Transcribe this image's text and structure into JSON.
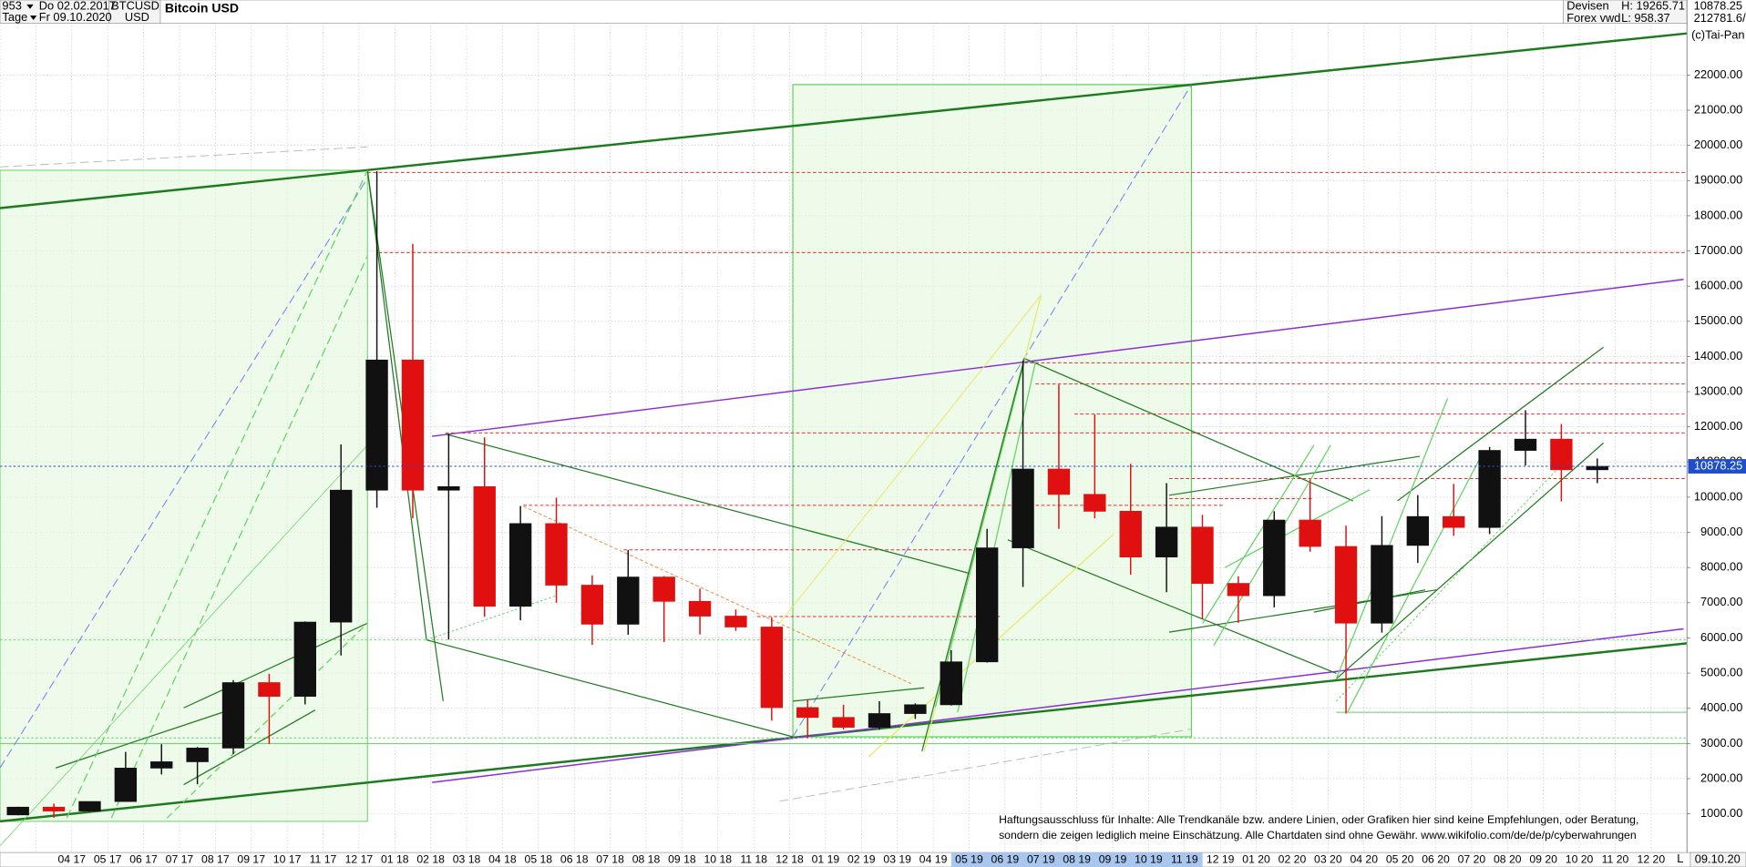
{
  "header": {
    "bars": "953",
    "period": "Tage",
    "from": "Do 02.02.2017",
    "to": "Fr 09.10.2020",
    "symbol": "BTCUSD",
    "currency": "USD",
    "exchange": "Devisen",
    "source": "Forex vwd",
    "high": "H: 19265.71",
    "low": "L: 958.37",
    "volume": "212781.6/",
    "copyright": "(c)Tai-Pan"
  },
  "chart_data": {
    "type": "candlestick",
    "title": "Bitcoin USD",
    "categories": [
      null,
      null,
      "04 17",
      "05 17",
      "06 17",
      "07 17",
      "08 17",
      "09 17",
      "10 17",
      "11 17",
      "12 17",
      "01 18",
      "02 18",
      "03 18",
      "04 18",
      "05 18",
      "06 18",
      "07 18",
      "08 18",
      "09 18",
      "10 18",
      "11 18",
      "12 18",
      "01 19",
      "02 19",
      "03 19",
      "04 19",
      "05 19",
      "06 19",
      "07 19",
      "08 19",
      "09 19",
      "10 19",
      "11 19",
      "12 19",
      "01 20",
      "02 20",
      "03 20",
      "04 20",
      "05 20",
      "06 20",
      "07 20",
      "08 20",
      "09 20",
      "10 20",
      "11 20",
      "12 20"
    ],
    "open": [
      970,
      1190,
      1080,
      1350,
      2300,
      2480,
      2870,
      4730,
      4340,
      6450,
      10200,
      13900,
      10200,
      10300,
      6900,
      9250,
      7500,
      6390,
      7730,
      7040,
      6620,
      6310,
      4020,
      3740,
      3460,
      3850,
      4100,
      5320,
      8560,
      10800,
      10080,
      9600,
      8300,
      9150,
      7550,
      7200,
      9350,
      8600,
      6420,
      8630,
      9450,
      9140,
      11330,
      11650,
      10780,
      null,
      null
    ],
    "high": [
      1200,
      1290,
      1350,
      2760,
      2980,
      2900,
      4800,
      4980,
      6470,
      11500,
      19265.71,
      17200,
      11800,
      11700,
      9750,
      9990,
      7780,
      8500,
      7760,
      7400,
      6810,
      6580,
      4250,
      4100,
      4200,
      4140,
      5650,
      9100,
      13880,
      13200,
      12350,
      10950,
      10400,
      9500,
      7750,
      9600,
      10500,
      9190,
      9460,
      10060,
      10380,
      11430,
      12470,
      12080,
      11100,
      null,
      null
    ],
    "low": [
      958.37,
      890,
      1060,
      1350,
      2120,
      1840,
      2700,
      2980,
      4110,
      5500,
      9700,
      9400,
      5950,
      6600,
      6500,
      7000,
      5800,
      6090,
      5880,
      6100,
      6200,
      3650,
      3150,
      3400,
      3390,
      3700,
      4080,
      5300,
      7450,
      9100,
      9400,
      7800,
      7300,
      6550,
      6430,
      6870,
      8450,
      3850,
      6150,
      8130,
      8900,
      8950,
      10900,
      9880,
      10400,
      null,
      null
    ],
    "close": [
      1190,
      1080,
      1350,
      2300,
      2480,
      2870,
      4730,
      4340,
      6450,
      10200,
      13900,
      10200,
      10300,
      6900,
      9250,
      7500,
      6390,
      7730,
      7040,
      6620,
      6310,
      4020,
      3740,
      3460,
      3850,
      4100,
      5320,
      8560,
      10800,
      10080,
      9600,
      8300,
      9150,
      7550,
      7200,
      9350,
      8600,
      6420,
      8630,
      9450,
      9140,
      11330,
      11650,
      10780,
      10878.25,
      null,
      null
    ],
    "up_color": "#111111",
    "down_color": "#e01010",
    "last_color": "#1f4fc8",
    "ylim": [
      -100,
      23500
    ],
    "yticks": [
      {
        "value": 1000,
        "label": "1000.00"
      },
      {
        "value": 2000,
        "label": "2000.00"
      },
      {
        "value": 3000,
        "label": "3000.00"
      },
      {
        "value": 4000,
        "label": "4000.00"
      },
      {
        "value": 5000,
        "label": "5000.00"
      },
      {
        "value": 6000,
        "label": "6000.00"
      },
      {
        "value": 7000,
        "label": "7000.00"
      },
      {
        "value": 8000,
        "label": "8000.00"
      },
      {
        "value": 9000,
        "label": "9000.00"
      },
      {
        "value": 10000,
        "label": "10000.00"
      },
      {
        "value": 11000,
        "label": "11000.00"
      },
      {
        "value": 12000,
        "label": "12000.00"
      },
      {
        "value": 13000,
        "label": "13000.00"
      },
      {
        "value": 14000,
        "label": "14000.00"
      },
      {
        "value": 15000,
        "label": "15000.00"
      },
      {
        "value": 16000,
        "label": "16000.00"
      },
      {
        "value": 17000,
        "label": "17000.00"
      },
      {
        "value": 18000,
        "label": "18000.00"
      },
      {
        "value": 19000,
        "label": "19000.00"
      },
      {
        "value": 20000,
        "label": "20000.00"
      },
      {
        "value": 21000,
        "label": "21000.00"
      },
      {
        "value": 22000,
        "label": "22000.00"
      }
    ],
    "grid": true
  },
  "footer": {
    "end_date": "09.10.20",
    "scale": "L"
  },
  "disclaimer": [
    "Haftungsausschluss für Inhalte: Alle Trendkanäle bzw. andere Linien, oder Grafiken hier sind keine Empfehlungen, oder Beratung,",
    "sondern die zeigen lediglich meine Einschätzung. Alle Chartdaten sind ohne Gewähr. www.wikifolio.com/de/de/p/cyberwahrungen"
  ]
}
